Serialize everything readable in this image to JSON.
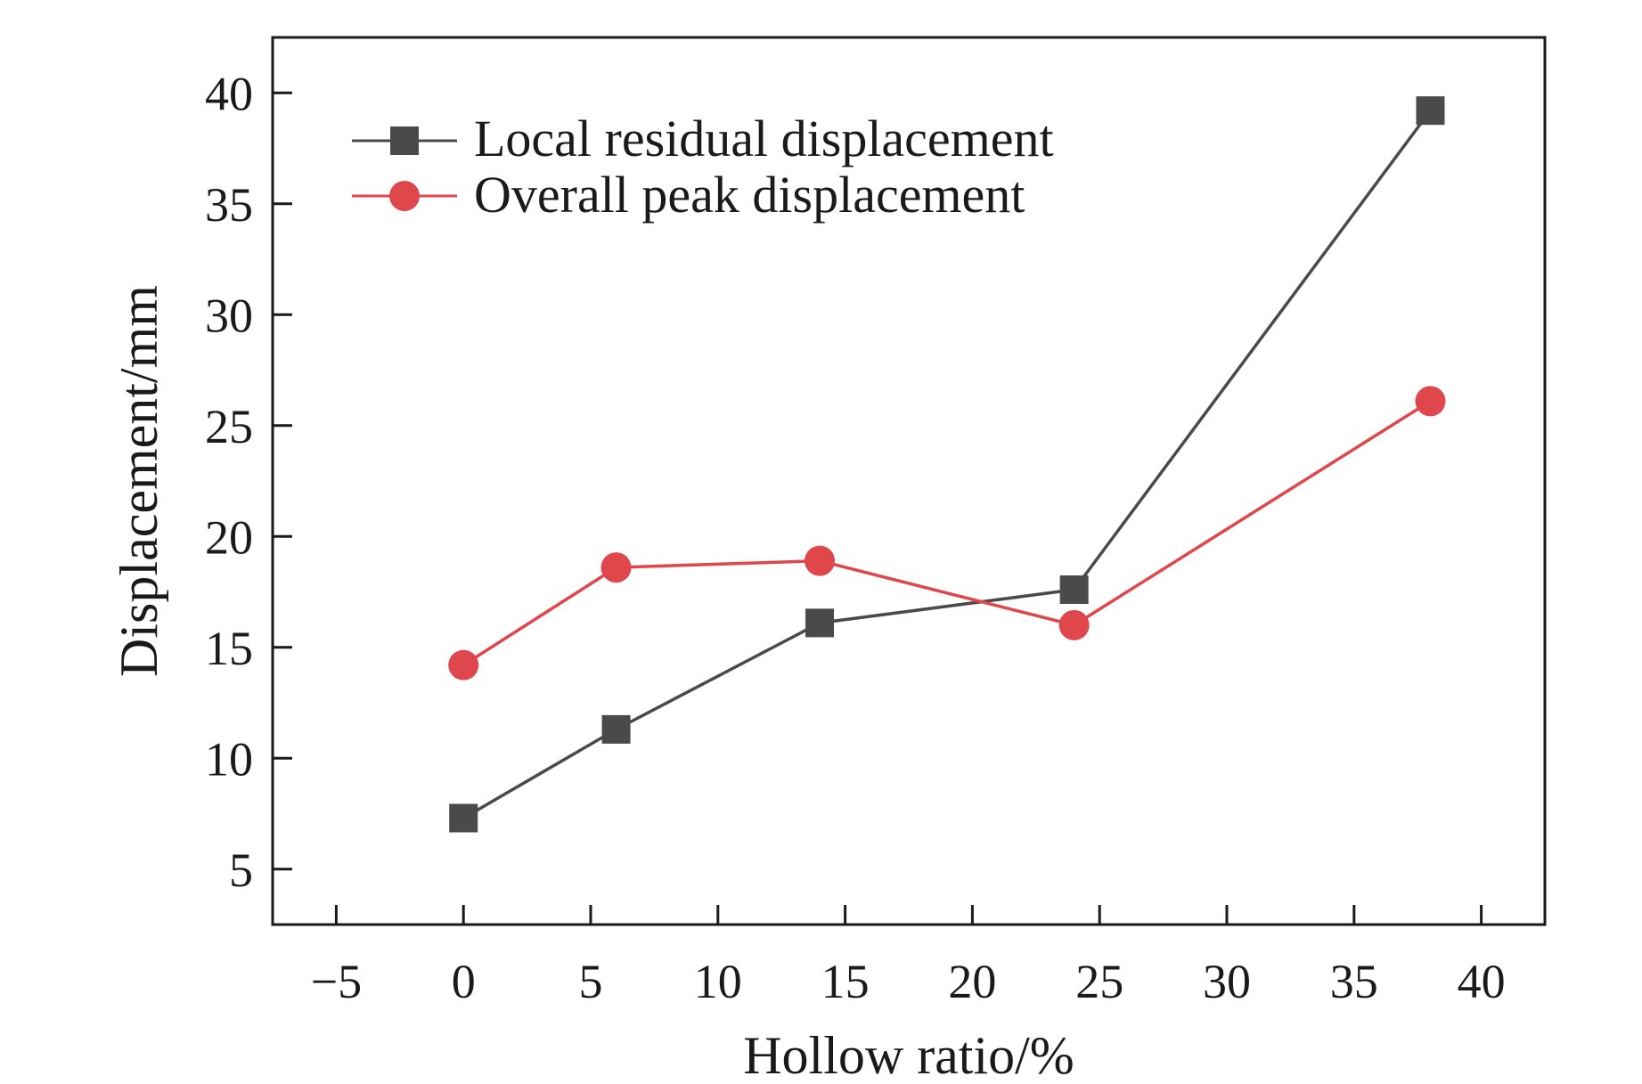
{
  "chart_data": {
    "type": "line",
    "xlabel": "Hollow ratio/%",
    "ylabel": "Displacement/mm",
    "xlim": [
      -7.5,
      42.5
    ],
    "ylim": [
      2.5,
      42.5
    ],
    "x_ticks": [
      -5,
      0,
      5,
      10,
      15,
      20,
      25,
      30,
      35,
      40
    ],
    "x_tick_labels": [
      "−5",
      "0",
      "5",
      "10",
      "15",
      "20",
      "25",
      "30",
      "35",
      "40"
    ],
    "y_ticks": [
      5,
      10,
      15,
      20,
      25,
      30,
      35,
      40
    ],
    "y_tick_labels": [
      "5",
      "10",
      "15",
      "20",
      "25",
      "30",
      "35",
      "40"
    ],
    "grid": false,
    "legend_position": "top-left",
    "x": [
      0,
      6,
      14,
      24,
      38
    ],
    "series": [
      {
        "name": "Local residual displacement",
        "values": [
          7.3,
          11.3,
          16.1,
          17.6,
          39.2
        ],
        "color": "#4a4a4a",
        "marker": "square"
      },
      {
        "name": "Overall peak displacement",
        "values": [
          14.2,
          18.6,
          18.9,
          16.0,
          26.1
        ],
        "color": "#e0474c",
        "marker": "circle"
      }
    ]
  }
}
